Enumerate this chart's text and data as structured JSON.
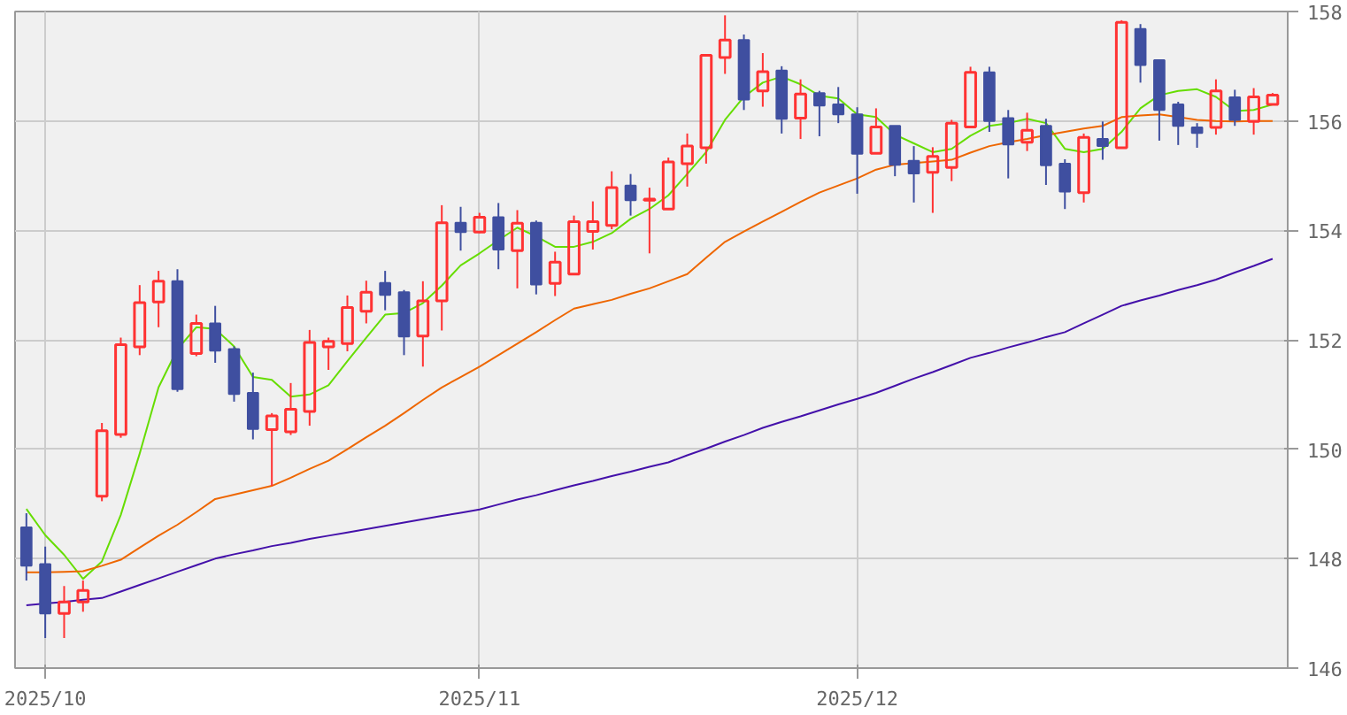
{
  "chart_data": {
    "type": "candlestick",
    "categories": [
      null,
      "2025/10",
      null,
      null,
      null,
      null,
      null,
      null,
      null,
      null,
      null,
      null,
      null,
      null,
      null,
      null,
      null,
      null,
      null,
      null,
      null,
      null,
      null,
      null,
      "2025/11",
      null,
      null,
      null,
      null,
      null,
      null,
      null,
      null,
      null,
      null,
      null,
      null,
      null,
      null,
      null,
      null,
      null,
      null,
      null,
      "2025/12",
      null,
      null,
      null,
      null,
      null,
      null,
      null,
      null,
      null,
      null,
      null,
      null,
      null,
      null,
      null,
      null,
      null,
      null,
      null,
      null,
      null,
      null
    ],
    "ohlc": [
      [
        148.57,
        148.83,
        147.6,
        147.87
      ],
      [
        147.9,
        148.22,
        146.55,
        147.0
      ],
      [
        147.0,
        147.5,
        146.55,
        147.21
      ],
      [
        147.21,
        147.6,
        147.03,
        147.42
      ],
      [
        149.14,
        150.48,
        149.05,
        150.34
      ],
      [
        150.27,
        152.04,
        150.21,
        151.91
      ],
      [
        151.87,
        153.0,
        151.72,
        152.68
      ],
      [
        152.69,
        153.26,
        152.23,
        153.07
      ],
      [
        153.07,
        153.29,
        151.05,
        151.1
      ],
      [
        151.75,
        152.46,
        151.7,
        152.3
      ],
      [
        152.3,
        152.62,
        151.58,
        151.8
      ],
      [
        151.83,
        151.88,
        150.87,
        151.01
      ],
      [
        151.03,
        151.4,
        150.18,
        150.37
      ],
      [
        150.36,
        150.66,
        149.33,
        150.61
      ],
      [
        150.32,
        151.21,
        150.26,
        150.73
      ],
      [
        150.69,
        152.18,
        150.43,
        151.95
      ],
      [
        151.87,
        152.04,
        151.45,
        151.97
      ],
      [
        151.93,
        152.81,
        151.79,
        152.59
      ],
      [
        152.52,
        153.08,
        152.3,
        152.87
      ],
      [
        153.04,
        153.26,
        152.54,
        152.82
      ],
      [
        152.87,
        152.91,
        151.72,
        152.06
      ],
      [
        152.07,
        153.07,
        151.51,
        152.71
      ],
      [
        152.71,
        154.46,
        152.17,
        154.14
      ],
      [
        154.14,
        154.43,
        153.63,
        153.97
      ],
      [
        153.97,
        154.32,
        153.95,
        154.24
      ],
      [
        154.24,
        154.5,
        153.29,
        153.65
      ],
      [
        153.63,
        154.37,
        152.94,
        154.13
      ],
      [
        154.14,
        154.18,
        152.83,
        153.01
      ],
      [
        153.03,
        153.61,
        152.8,
        153.42
      ],
      [
        153.2,
        154.27,
        153.2,
        154.16
      ],
      [
        153.98,
        154.53,
        153.65,
        154.16
      ],
      [
        154.09,
        155.08,
        154.02,
        154.78
      ],
      [
        154.82,
        155.03,
        154.27,
        154.55
      ],
      [
        154.55,
        154.78,
        153.58,
        154.57
      ],
      [
        154.39,
        155.33,
        154.39,
        155.25
      ],
      [
        155.22,
        155.77,
        154.8,
        155.54
      ],
      [
        155.51,
        157.2,
        155.22,
        157.2
      ],
      [
        157.16,
        157.93,
        156.86,
        157.48
      ],
      [
        157.48,
        157.58,
        156.2,
        156.39
      ],
      [
        156.55,
        157.24,
        156.26,
        156.9
      ],
      [
        156.92,
        157.0,
        155.77,
        156.04
      ],
      [
        156.05,
        156.76,
        155.67,
        156.49
      ],
      [
        156.51,
        156.55,
        155.72,
        156.28
      ],
      [
        156.3,
        156.62,
        155.96,
        156.12
      ],
      [
        156.12,
        156.25,
        154.67,
        155.4
      ],
      [
        155.41,
        156.23,
        155.41,
        155.89
      ],
      [
        155.91,
        155.91,
        154.99,
        155.2
      ],
      [
        155.27,
        155.54,
        154.51,
        155.04
      ],
      [
        155.06,
        155.52,
        154.32,
        155.35
      ],
      [
        155.15,
        156.02,
        154.9,
        155.96
      ],
      [
        155.89,
        156.99,
        155.89,
        156.89
      ],
      [
        156.89,
        156.99,
        155.8,
        156.0
      ],
      [
        156.05,
        156.2,
        154.95,
        155.57
      ],
      [
        155.61,
        156.15,
        155.45,
        155.83
      ],
      [
        155.91,
        156.04,
        154.83,
        155.19
      ],
      [
        155.22,
        155.3,
        154.39,
        154.71
      ],
      [
        154.69,
        155.77,
        154.51,
        155.7
      ],
      [
        155.67,
        155.99,
        155.29,
        155.54
      ],
      [
        155.51,
        157.84,
        155.51,
        157.8
      ],
      [
        157.68,
        157.77,
        156.7,
        157.02
      ],
      [
        157.11,
        157.11,
        155.64,
        156.2
      ],
      [
        156.3,
        156.35,
        155.56,
        155.91
      ],
      [
        155.88,
        155.96,
        155.51,
        155.78
      ],
      [
        155.88,
        156.76,
        155.75,
        156.55
      ],
      [
        156.43,
        156.57,
        155.91,
        156.02
      ],
      [
        155.99,
        156.6,
        155.75,
        156.44
      ],
      [
        156.3,
        156.51,
        156.3,
        156.47
      ]
    ],
    "colors": [
      "#3f4fa0",
      "#3f4fa0",
      "#ff3333",
      "#ff3333",
      "#ff3333",
      "#ff3333",
      "#ff3333",
      "#ff3333",
      "#3f4fa0",
      "#ff3333",
      "#3f4fa0",
      "#3f4fa0",
      "#3f4fa0",
      "#ff3333",
      "#ff3333",
      "#ff3333",
      "#ff3333",
      "#ff3333",
      "#ff3333",
      "#3f4fa0",
      "#3f4fa0",
      "#ff3333",
      "#ff3333",
      "#3f4fa0",
      "#ff3333",
      "#3f4fa0",
      "#ff3333",
      "#3f4fa0",
      "#ff3333",
      "#ff3333",
      "#ff3333",
      "#ff3333",
      "#3f4fa0",
      "#ff3333",
      "#ff3333",
      "#ff3333",
      "#ff3333",
      "#ff3333",
      "#3f4fa0",
      "#ff3333",
      "#3f4fa0",
      "#ff3333",
      "#3f4fa0",
      "#3f4fa0",
      "#3f4fa0",
      "#ff3333",
      "#3f4fa0",
      "#3f4fa0",
      "#ff3333",
      "#ff3333",
      "#ff3333",
      "#3f4fa0",
      "#3f4fa0",
      "#ff3333",
      "#3f4fa0",
      "#3f4fa0",
      "#ff3333",
      "#3f4fa0",
      "#ff3333",
      "#3f4fa0",
      "#3f4fa0",
      "#3f4fa0",
      "#3f4fa0",
      "#ff3333",
      "#3f4fa0",
      "#ff3333",
      "#ff3333"
    ],
    "series": [
      {
        "type": "line",
        "color": "#66dd00",
        "values": [
          148.91,
          148.43,
          148.07,
          147.63,
          147.95,
          148.8,
          149.92,
          151.13,
          151.83,
          152.23,
          152.2,
          151.88,
          151.32,
          151.27,
          150.96,
          151.0,
          151.17,
          151.61,
          152.04,
          152.46,
          152.49,
          152.67,
          152.99,
          153.36,
          153.58,
          153.82,
          154.05,
          153.89,
          153.7,
          153.7,
          153.79,
          153.95,
          154.21,
          154.39,
          154.64,
          155.03,
          155.43,
          156.02,
          156.44,
          156.7,
          156.81,
          156.67,
          156.46,
          156.41,
          156.12,
          156.07,
          155.75,
          155.59,
          155.43,
          155.49,
          155.73,
          155.91,
          155.96,
          156.04,
          155.96,
          155.49,
          155.43,
          155.49,
          155.8,
          156.23,
          156.47,
          156.55,
          156.58,
          156.44,
          156.18,
          156.2,
          156.3
        ]
      },
      {
        "type": "line",
        "color": "#ee6600",
        "values": [
          147.75,
          147.75,
          147.76,
          147.77,
          147.87,
          147.98,
          148.2,
          148.42,
          148.62,
          148.85,
          149.09,
          149.17,
          149.25,
          149.33,
          149.48,
          149.64,
          149.79,
          150.0,
          150.22,
          150.43,
          150.66,
          150.9,
          151.13,
          151.32,
          151.51,
          151.72,
          151.93,
          152.14,
          152.36,
          152.57,
          152.65,
          152.73,
          152.84,
          152.94,
          153.07,
          153.2,
          153.5,
          153.79,
          153.98,
          154.16,
          154.34,
          154.52,
          154.69,
          154.82,
          154.95,
          155.11,
          155.2,
          155.23,
          155.26,
          155.29,
          155.42,
          155.54,
          155.61,
          155.67,
          155.74,
          155.8,
          155.86,
          155.91,
          156.07,
          156.1,
          156.12,
          156.07,
          156.02,
          156.0,
          155.99,
          156.0,
          156.0
        ]
      },
      {
        "type": "line",
        "color": "#4411aa",
        "values": [
          147.15,
          147.18,
          147.21,
          147.25,
          147.28,
          147.4,
          147.52,
          147.64,
          147.76,
          147.88,
          148.0,
          148.08,
          148.15,
          148.23,
          148.29,
          148.36,
          148.42,
          148.48,
          148.54,
          148.6,
          148.66,
          148.72,
          148.78,
          148.84,
          148.9,
          148.99,
          149.08,
          149.16,
          149.25,
          149.34,
          149.42,
          149.51,
          149.59,
          149.68,
          149.76,
          149.89,
          150.01,
          150.14,
          150.26,
          150.39,
          150.5,
          150.6,
          150.71,
          150.82,
          150.92,
          151.03,
          151.16,
          151.29,
          151.41,
          151.54,
          151.67,
          151.76,
          151.86,
          151.95,
          152.05,
          152.14,
          152.3,
          152.46,
          152.62,
          152.72,
          152.81,
          152.91,
          153.0,
          153.1,
          153.23,
          153.35,
          153.48
        ]
      }
    ],
    "ylim": [
      146,
      158
    ],
    "yticks": [
      146,
      148,
      150,
      152,
      154,
      156,
      158
    ],
    "grid": true
  }
}
